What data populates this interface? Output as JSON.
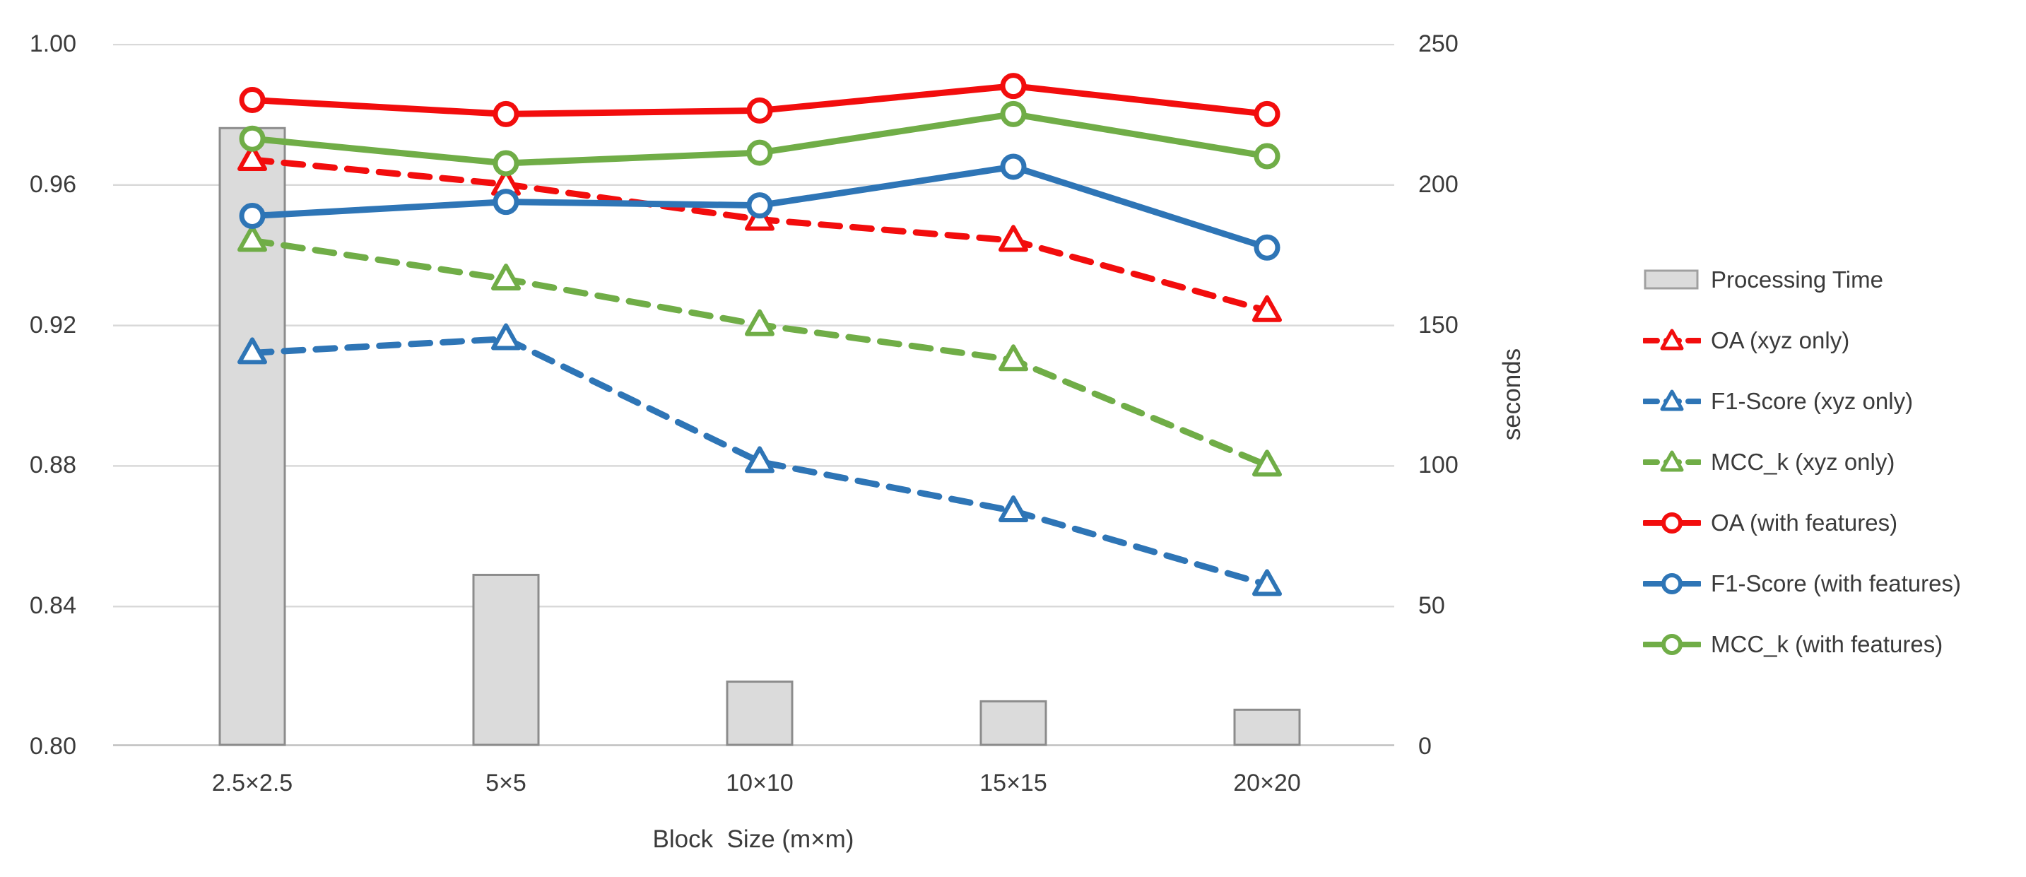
{
  "chart_data": {
    "type": "combo-bar-line",
    "categories": [
      "2.5×2.5",
      "5×5",
      "10×10",
      "15×15",
      "20×20"
    ],
    "x_axis": {
      "title": "Block  Size (m×m)"
    },
    "left_axis": {
      "min": 0.8,
      "max": 1.0,
      "ticks": [
        "1.00",
        "0.96",
        "0.92",
        "0.88",
        "0.84",
        "0.80"
      ],
      "grid": true
    },
    "right_axis": {
      "min": 0,
      "max": 250,
      "ticks": [
        "250",
        "200",
        "150",
        "100",
        "50",
        "0"
      ],
      "title": "seconds"
    },
    "bar_series": {
      "name": "Processing Time",
      "axis": "right",
      "unit": "seconds",
      "values": [
        220,
        61,
        23,
        16,
        13
      ],
      "fill": "#dbdbdb",
      "stroke": "#8c8c8c"
    },
    "line_series": [
      {
        "name": "OA (xyz only)",
        "color": "#f20d0d",
        "dashed": true,
        "marker": "triangle",
        "values": [
          0.967,
          0.96,
          0.95,
          0.944,
          0.924
        ]
      },
      {
        "name": "F1-Score (xyz only)",
        "color": "#2e75b6",
        "dashed": true,
        "marker": "triangle",
        "values": [
          0.912,
          0.916,
          0.881,
          0.867,
          0.846
        ]
      },
      {
        "name": "MCC_k (xyz only)",
        "color": "#70ad47",
        "dashed": true,
        "marker": "triangle",
        "values": [
          0.944,
          0.933,
          0.92,
          0.91,
          0.88
        ]
      },
      {
        "name": "OA (with features)",
        "color": "#f20d0d",
        "dashed": false,
        "marker": "circle",
        "values": [
          0.984,
          0.98,
          0.981,
          0.988,
          0.98
        ]
      },
      {
        "name": "F1-Score (with features)",
        "color": "#2e75b6",
        "dashed": false,
        "marker": "circle",
        "values": [
          0.951,
          0.955,
          0.954,
          0.965,
          0.942
        ]
      },
      {
        "name": "MCC_k (with features)",
        "color": "#70ad47",
        "dashed": false,
        "marker": "circle",
        "values": [
          0.973,
          0.966,
          0.969,
          0.98,
          0.968
        ]
      }
    ],
    "legend": {
      "position": "right",
      "entries": [
        "Processing Time",
        "OA (xyz only)",
        "F1-Score (xyz only)",
        "MCC_k (xyz only)",
        "OA (with features)",
        "F1-Score (with features)",
        "MCC_k (with features)"
      ]
    },
    "style": {
      "gridline_color": "#d9d9d9",
      "axis_line_color": "#bfbfbf",
      "text_color": "#3b3b3b",
      "background": "#ffffff"
    }
  }
}
